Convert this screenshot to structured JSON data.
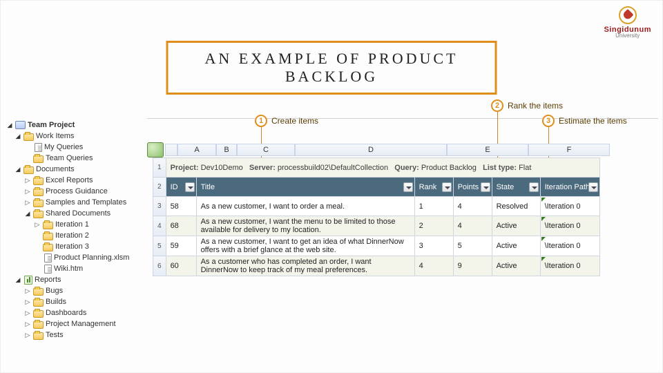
{
  "brand": {
    "name": "Singidunum",
    "sub": "University"
  },
  "title": "AN EXAMPLE OF PRODUCT BACKLOG",
  "accent_color": "#e08e1b",
  "callouts": [
    {
      "n": "1",
      "label": "Create items"
    },
    {
      "n": "2",
      "label": "Rank the items"
    },
    {
      "n": "3",
      "label": "Estimate the items"
    }
  ],
  "tree": [
    {
      "depth": 0,
      "exp": "▲",
      "icon": "proj",
      "label": "Team Project",
      "bold": true
    },
    {
      "depth": 1,
      "exp": "▲",
      "icon": "folder",
      "label": "Work Items"
    },
    {
      "depth": 2,
      "exp": "",
      "icon": "file",
      "label": "My Queries"
    },
    {
      "depth": 2,
      "exp": "",
      "icon": "folder",
      "label": "Team Queries"
    },
    {
      "depth": 1,
      "exp": "▲",
      "icon": "folder",
      "label": "Documents"
    },
    {
      "depth": 2,
      "exp": "▷",
      "icon": "folder",
      "label": "Excel Reports"
    },
    {
      "depth": 2,
      "exp": "▷",
      "icon": "folder",
      "label": "Process Guidance"
    },
    {
      "depth": 2,
      "exp": "▷",
      "icon": "folder",
      "label": "Samples and Templates"
    },
    {
      "depth": 2,
      "exp": "▲",
      "icon": "folder",
      "label": "Shared Documents"
    },
    {
      "depth": 3,
      "exp": "▷",
      "icon": "folder",
      "label": "Iteration 1"
    },
    {
      "depth": 3,
      "exp": "",
      "icon": "folder",
      "label": "Iteration 2"
    },
    {
      "depth": 3,
      "exp": "",
      "icon": "folder",
      "label": "Iteration 3"
    },
    {
      "depth": 3,
      "exp": "",
      "icon": "file",
      "label": "Product Planning.xlsm"
    },
    {
      "depth": 3,
      "exp": "",
      "icon": "file",
      "label": "Wiki.htm"
    },
    {
      "depth": 1,
      "exp": "▲",
      "icon": "report",
      "label": "Reports"
    },
    {
      "depth": 2,
      "exp": "▷",
      "icon": "folder",
      "label": "Bugs"
    },
    {
      "depth": 2,
      "exp": "▷",
      "icon": "folder",
      "label": "Builds"
    },
    {
      "depth": 2,
      "exp": "▷",
      "icon": "folder",
      "label": "Dashboards"
    },
    {
      "depth": 2,
      "exp": "▷",
      "icon": "folder",
      "label": "Project Management"
    },
    {
      "depth": 2,
      "exp": "▷",
      "icon": "folder",
      "label": "Tests"
    }
  ],
  "columns_letters": [
    "A",
    "B",
    "C",
    "D",
    "E",
    "F"
  ],
  "info_row": {
    "project_k": "Project:",
    "project_v": "Dev10Demo",
    "server_k": "Server:",
    "server_v": "processbuild02\\DefaultCollection",
    "query_k": "Query:",
    "query_v": "Product Backlog",
    "list_k": "List type:",
    "list_v": "Flat"
  },
  "headers": [
    "ID",
    "Title",
    "Rank",
    "Points",
    "State",
    "Iteration Path"
  ],
  "rows": [
    {
      "rn": "3",
      "id": "58",
      "title": "As a new customer, I want to order a meal.",
      "rank": "1",
      "pts": "4",
      "state": "Resolved",
      "iter": "\\Iteration 0"
    },
    {
      "rn": "4",
      "id": "68",
      "title": "As a new customer, I want the menu to be limited to those available for delivery to my location.",
      "rank": "2",
      "pts": "4",
      "state": "Active",
      "iter": "\\Iteration 0"
    },
    {
      "rn": "5",
      "id": "59",
      "title": "As a new customer, I want to get an idea of what DinnerNow offers with a brief glance at the web site.",
      "rank": "3",
      "pts": "5",
      "state": "Active",
      "iter": "\\Iteration 0"
    },
    {
      "rn": "6",
      "id": "60",
      "title": "As a customer who has completed an order, I want DinnerNow to keep track of my meal preferences.",
      "rank": "4",
      "pts": "9",
      "state": "Active",
      "iter": "\\Iteration 0"
    }
  ],
  "col_widths": {
    "A": 56,
    "B": 30,
    "C": 84,
    "D": 220,
    "E": 118,
    "F": 118
  },
  "colors": {
    "header_bg": "#4b6a7d",
    "header_fg": "#ffffff",
    "alt_row": "#f3f4ea",
    "grid_border": "#cfd6df",
    "callout": "#c9832a",
    "iter_marker": "#3a7a2a"
  }
}
